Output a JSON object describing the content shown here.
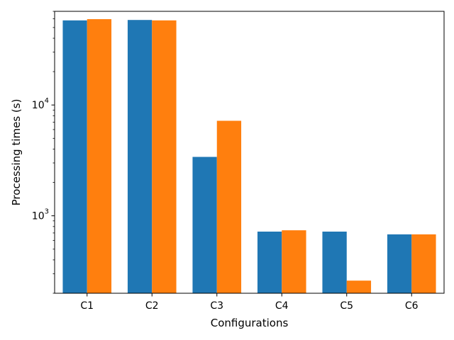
{
  "chart_data": {
    "type": "bar",
    "xlabel": "Configurations",
    "ylabel": "Processing times (s)",
    "yscale": "log",
    "ylim": [
      200,
      70000
    ],
    "grid": false,
    "categories": [
      "C1",
      "C2",
      "C3",
      "C4",
      "C5",
      "C6"
    ],
    "y_ticks": [
      {
        "base": "10",
        "exp": "3",
        "value": 1000
      },
      {
        "base": "10",
        "exp": "4",
        "value": 10000
      }
    ],
    "series": [
      {
        "color": "#1f77b4",
        "values": [
          58000,
          58500,
          3400,
          720,
          720,
          680
        ]
      },
      {
        "color": "#ff7f0e",
        "values": [
          59500,
          58000,
          7200,
          740,
          260,
          680
        ]
      }
    ]
  }
}
